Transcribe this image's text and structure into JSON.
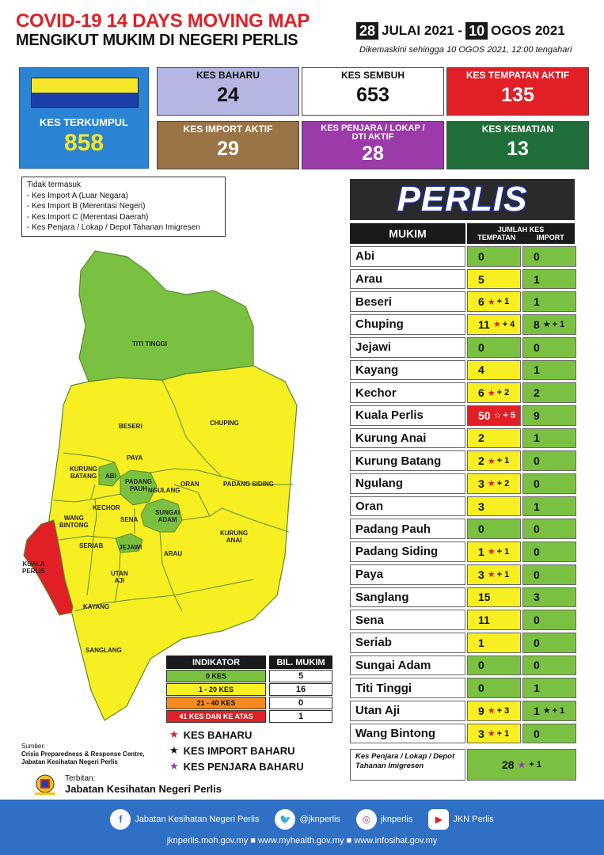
{
  "header": {
    "title_line1": "COVID-19 14 DAYS MOVING MAP",
    "title_line2": "MENGIKUT MUKIM DI NEGERI PERLIS",
    "date_start_day": "28",
    "date_start_rest": "JULAI 2021 -",
    "date_end_day": "10",
    "date_end_rest": "OGOS 2021",
    "updated": "Dikemaskini sehingga  10 OGOS  2021, 12:00 tengahari"
  },
  "stats": {
    "kes_terkumpul": {
      "label": "KES TERKUMPUL",
      "value": "858"
    },
    "kes_baharu": {
      "label": "KES BAHARU",
      "value": "24"
    },
    "kes_sembuh": {
      "label": "KES SEMBUH",
      "value": "653"
    },
    "kes_tempatan_aktif": {
      "label": "KES TEMPATAN AKTIF",
      "value": "135"
    },
    "kes_import_aktif": {
      "label": "KES IMPORT AKTIF",
      "value": "29"
    },
    "kes_penjara_aktif": {
      "label_line1": "KES PENJARA / LOKAP /",
      "label_line2": "DTI AKTIF",
      "value": "28"
    },
    "kes_kematian": {
      "label": "KES KEMATIAN",
      "value": "13"
    }
  },
  "exclusion": {
    "heading": "Tidak termasuk",
    "items": [
      "- Kes Import A (Luar Negara)",
      "- Kes Import B (Merentasi Negeri)",
      "- Kes Import C (Merentasi Daerah)",
      "- Kes Penjara / Lokap / Depot Tahanan Imigresen"
    ]
  },
  "map": {
    "labels": {
      "titi_tinggi": "TITI TINGGI",
      "beseri": "BESERI",
      "chuping": "CHUPING",
      "kurung_batang_1": "KURUNG",
      "kurung_batang_2": "BATANG",
      "paya": "PAYA",
      "abi": "ABI",
      "padang_pauh_1": "PADANG",
      "padang_pauh_2": "PAUH",
      "ngulang": "NGULANG",
      "oran": "ORAN",
      "padang_siding": "PADANG SIDING",
      "kechor": "KECHOR",
      "wang_bintong_1": "WANG",
      "wang_bintong_2": "BINTONG",
      "sena": "SENA",
      "sungai_adam_1": "SUNGAI",
      "sungai_adam_2": "ADAM",
      "kurung_anai_1": "KURUNG",
      "kurung_anai_2": "ANAI",
      "seriab": "SERIAB",
      "jejawi": "JEJAWI",
      "arau": "ARAU",
      "kuala_perlis_1": "KUALA",
      "kuala_perlis_2": "PERLIS",
      "utan_aji_1": "UTAN",
      "utan_aji_2": "AJI",
      "kayang": "KAYANG",
      "sanglang": "SANGLANG"
    }
  },
  "indicator": {
    "head_label": "INDIKATOR",
    "head_count": "BIL. MUKIM",
    "rows": [
      {
        "label": "0 KES",
        "count": "5",
        "color": "#7ac142"
      },
      {
        "label": "1 - 20 KES",
        "count": "16",
        "color": "#f7ef22"
      },
      {
        "label": "21 - 40 KES",
        "count": "0",
        "color": "#f58a1f"
      },
      {
        "label": "41 KES DAN KE ATAS",
        "count": "1",
        "color": "#e01f26"
      }
    ]
  },
  "legend": {
    "kes_baharu": "KES BAHARU",
    "kes_import_baharu": "KES IMPORT BAHARU",
    "kes_penjara_baharu": "KES PENJARA BAHARU"
  },
  "source": {
    "label": "Sumber:",
    "line1": "Crisis Preparedness & Response Centre,",
    "line2": "Jabatan Kesihatan Negeri Perlis"
  },
  "publisher": {
    "label": "Terbitan:",
    "name": "Jabatan Kesihatan Negeri Perlis"
  },
  "table": {
    "region_title": "PERLIS",
    "col_mukim": "MUKIM",
    "col_jumlah": "JUMLAH KES",
    "col_tempatan": "TEMPATAN",
    "col_import": "IMPORT",
    "rows": [
      {
        "name": "Abi",
        "local": "0",
        "local_new": "",
        "import": "0",
        "import_new": ""
      },
      {
        "name": "Arau",
        "local": "5",
        "local_new": "",
        "import": "1",
        "import_new": ""
      },
      {
        "name": "Beseri",
        "local": "6",
        "local_new": "+ 1",
        "import": "1",
        "import_new": ""
      },
      {
        "name": "Chuping",
        "local": "11",
        "local_new": "+ 4",
        "import": "8",
        "import_new": "+ 1"
      },
      {
        "name": "Jejawi",
        "local": "0",
        "local_new": "",
        "import": "0",
        "import_new": ""
      },
      {
        "name": "Kayang",
        "local": "4",
        "local_new": "",
        "import": "1",
        "import_new": ""
      },
      {
        "name": "Kechor",
        "local": "6",
        "local_new": "+ 2",
        "import": "2",
        "import_new": ""
      },
      {
        "name": "Kuala Perlis",
        "local": "50",
        "local_new": "+ 5",
        "import": "9",
        "import_new": ""
      },
      {
        "name": "Kurung Anai",
        "local": "2",
        "local_new": "",
        "import": "1",
        "import_new": ""
      },
      {
        "name": "Kurung Batang",
        "local": "2",
        "local_new": "+ 1",
        "import": "0",
        "import_new": ""
      },
      {
        "name": "Ngulang",
        "local": "3",
        "local_new": "+ 2",
        "import": "0",
        "import_new": ""
      },
      {
        "name": "Oran",
        "local": "3",
        "local_new": "",
        "import": "1",
        "import_new": ""
      },
      {
        "name": "Padang Pauh",
        "local": "0",
        "local_new": "",
        "import": "0",
        "import_new": ""
      },
      {
        "name": "Padang Siding",
        "local": "1",
        "local_new": "+ 1",
        "import": "0",
        "import_new": ""
      },
      {
        "name": "Paya",
        "local": "3",
        "local_new": "+ 1",
        "import": "0",
        "import_new": ""
      },
      {
        "name": "Sanglang",
        "local": "15",
        "local_new": "",
        "import": "3",
        "import_new": ""
      },
      {
        "name": "Sena",
        "local": "11",
        "local_new": "",
        "import": "0",
        "import_new": ""
      },
      {
        "name": "Seriab",
        "local": "1",
        "local_new": "",
        "import": "0",
        "import_new": ""
      },
      {
        "name": "Sungai Adam",
        "local": "0",
        "local_new": "",
        "import": "0",
        "import_new": ""
      },
      {
        "name": "Titi Tinggi",
        "local": "0",
        "local_new": "",
        "import": "1",
        "import_new": ""
      },
      {
        "name": "Utan Aji",
        "local": "9",
        "local_new": "+ 3",
        "import": "1",
        "import_new": "+ 1"
      },
      {
        "name": "Wang Bintong",
        "local": "3",
        "local_new": "+ 1",
        "import": "0",
        "import_new": ""
      }
    ],
    "prison_label": "Kes Penjara / Lokap / Depot Tahanan Imigresen",
    "prison_value": "28",
    "prison_new": "+ 1"
  },
  "footer": {
    "facebook": "Jabatan Kesihatan Negeri Perlis",
    "twitter": "@jknperlis",
    "instagram": "jknperlis",
    "youtube": "JKN Perlis",
    "websites": "jknperlis.moh.gov.my ■ www.myhealth.gov.my ■ www.infosihat.gov.my"
  },
  "colors": {
    "green": "#7ac142",
    "yellow": "#f7ef22",
    "orange": "#f58a1f",
    "red": "#e01f26",
    "flag_yellow": "#f5e72a",
    "flag_blue": "#1b3ea8"
  }
}
